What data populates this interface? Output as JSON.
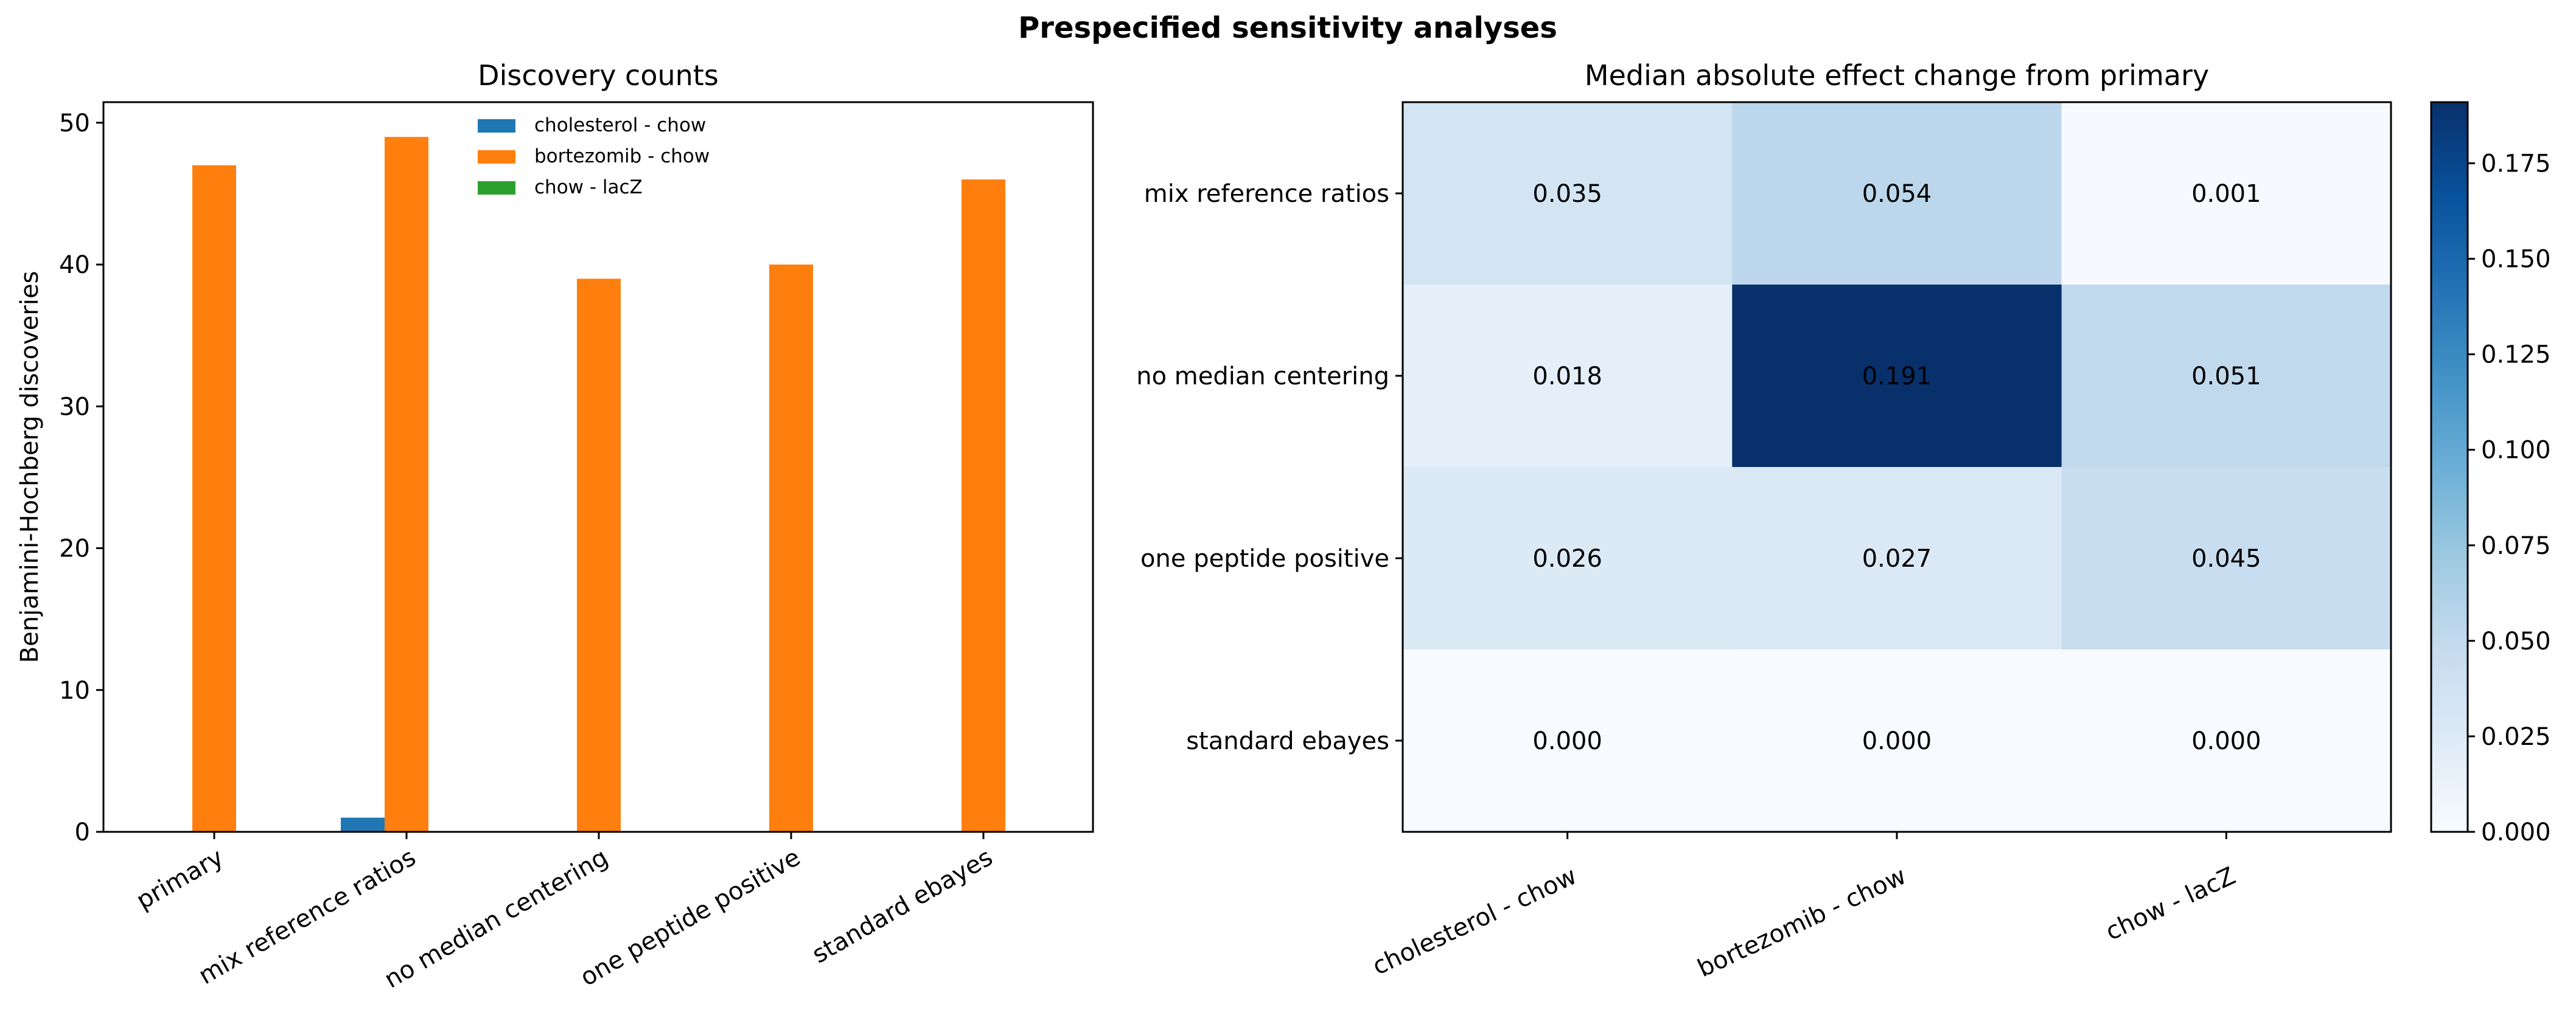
{
  "figure": {
    "suptitle": "Prespecified sensitivity analyses"
  },
  "chart_data": [
    {
      "type": "bar",
      "title": "Discovery counts",
      "xlabel": "",
      "ylabel": "Benjamini-Hochberg discoveries",
      "categories": [
        "primary",
        "mix reference ratios",
        "no median centering",
        "one peptide positive",
        "standard ebayes"
      ],
      "series": [
        {
          "name": "cholesterol - chow",
          "color": "#1f77b4",
          "values": [
            0,
            1,
            0,
            0,
            0
          ]
        },
        {
          "name": "bortezomib - chow",
          "color": "#ff7f0e",
          "values": [
            47,
            49,
            39,
            40,
            46
          ]
        },
        {
          "name": "chow - lacZ",
          "color": "#2ca02c",
          "values": [
            0,
            0,
            0,
            0,
            0
          ]
        }
      ],
      "ylim": [
        0,
        51.45
      ],
      "yticks": [
        0,
        10,
        20,
        30,
        40,
        50
      ],
      "legend": "top-center",
      "grid": false
    },
    {
      "type": "heatmap",
      "title": "Median absolute effect change from primary",
      "rows": [
        "mix reference ratios",
        "no median centering",
        "one peptide positive",
        "standard ebayes"
      ],
      "columns": [
        "cholesterol - chow",
        "bortezomib - chow",
        "chow - lacZ"
      ],
      "values": [
        [
          0.035,
          0.054,
          0.001
        ],
        [
          0.018,
          0.191,
          0.051
        ],
        [
          0.026,
          0.027,
          0.045
        ],
        [
          0.0,
          0.0,
          0.0
        ]
      ],
      "value_labels": [
        [
          "0.035",
          "0.054",
          "0.001"
        ],
        [
          "0.018",
          "0.191",
          "0.051"
        ],
        [
          "0.026",
          "0.027",
          "0.045"
        ],
        [
          "0.000",
          "0.000",
          "0.000"
        ]
      ],
      "colormap": "Blues",
      "colorbar": {
        "range": [
          0,
          0.191
        ],
        "ticks": [
          0,
          0.025,
          0.05,
          0.075,
          0.1,
          0.125,
          0.15,
          0.175
        ],
        "tick_labels": [
          "0.000",
          "0.025",
          "0.050",
          "0.075",
          "0.100",
          "0.125",
          "0.150",
          "0.175"
        ]
      }
    }
  ]
}
